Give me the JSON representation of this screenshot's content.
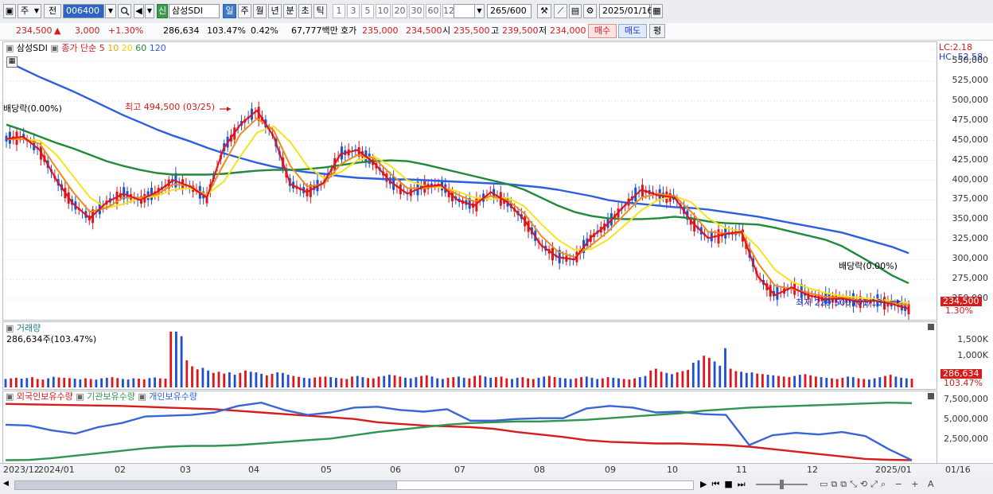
{
  "toolbar": {
    "type_label": "주",
    "prev_label": "전",
    "code_value": "006400",
    "new_badge": "신",
    "stock_name": "삼성SDI",
    "periods": [
      "일",
      "주",
      "월",
      "년",
      "분",
      "초",
      "틱"
    ],
    "active_period": "일",
    "intervals": [
      "1",
      "3",
      "5",
      "10",
      "20",
      "30",
      "60",
      "120"
    ],
    "count": "265",
    "count_total": "/600",
    "date": "2025/01/16"
  },
  "quote": {
    "price": "234,500",
    "arrow": "▲",
    "change": "3,000",
    "change_pct": "+1.30%",
    "volume": "286,634",
    "volume_ratio": "103.47%",
    "turnover": "0.42%",
    "amount": "67,777백만",
    "hoga_label": "호가",
    "hoga_ask": "235,000",
    "hoga_bid": "234,500",
    "open_label": "시",
    "open": "235,500",
    "high_label": "고",
    "high": "239,500",
    "low_label": "저",
    "low": "234,000",
    "buy_button": "매수",
    "sell_button": "매도",
    "eval_button": "평"
  },
  "price_panel": {
    "legend_name": "삼성SDI",
    "legend_ma_title": "종가 단순",
    "legend_ma": [
      "5",
      "10",
      "20",
      "60",
      "120"
    ],
    "lc": "LC:2.18",
    "hc": "HC:-52.58",
    "dividend_left": "배당락(0.00%)",
    "dividend_right": "배당락(0.00%)",
    "high_note": "최고 494,500 (03/25)",
    "low_note": "최저 229,500 (01/13)",
    "last_price_tag": "234,500",
    "last_pct_tag": "1.30%",
    "y_ticks": [
      "550,000",
      "525,000",
      "500,000",
      "475,000",
      "450,000",
      "425,000",
      "400,000",
      "375,000",
      "350,000",
      "325,000",
      "300,000",
      "275,000",
      "250,000"
    ]
  },
  "volume_panel": {
    "title": "거래량",
    "value": "286,634주(103.47%)",
    "y_ticks": [
      "1,500K",
      "1,000K"
    ],
    "last_tag": "286,634",
    "last_pct": "103.47%"
  },
  "holding_panel": {
    "legend": [
      "외국인보유수량",
      "기관보유수량",
      "개인보유수량"
    ],
    "y_ticks": [
      "7,500,000",
      "5,000,000",
      "2,500,000"
    ]
  },
  "x_axis": {
    "labels": [
      "2023/12",
      "2024/01",
      "02",
      "03",
      "04",
      "05",
      "06",
      "07",
      "08",
      "09",
      "10",
      "11",
      "12",
      "2025/01",
      "01/16"
    ]
  },
  "colors": {
    "up": "#e0141a",
    "down": "#1f4fd1",
    "ma5": "#e3121b",
    "ma10": "#f08a1b",
    "ma20": "#f5e31c",
    "ma60": "#1f8a3a",
    "ma120": "#2d5ee0",
    "foreign": "#3a64d8",
    "institution": "#2e9552",
    "individual": "#d81c1c"
  },
  "chart_data": [
    {
      "type": "line",
      "title": "삼성SDI",
      "series": [
        {
          "name": "5",
          "values": [
            452000,
            455000,
            438000,
            400000,
            370000,
            352000,
            372000,
            383000,
            375000,
            385000,
            400000,
            392000,
            378000,
            440000,
            470000,
            488000,
            455000,
            395000,
            385000,
            397000,
            433000,
            438000,
            422000,
            398000,
            383000,
            392000,
            394000,
            375000,
            368000,
            385000,
            372000,
            350000,
            318000,
            303000,
            300000,
            328000,
            345000,
            368000,
            388000,
            381000,
            378000,
            348000,
            327000,
            332000,
            335000,
            278000,
            255000,
            265000,
            255000,
            250000,
            251000,
            247000,
            248000,
            244000,
            238000
          ]
        },
        {
          "name": "10",
          "values": [
            452000,
            452000,
            446000,
            415000,
            385000,
            360000,
            365000,
            378000,
            378000,
            382000,
            395000,
            393000,
            380000,
            420000,
            458000,
            478000,
            463000,
            418000,
            392000,
            395000,
            420000,
            432000,
            428000,
            408000,
            390000,
            390000,
            393000,
            382000,
            373000,
            380000,
            375000,
            358000,
            330000,
            310000,
            303000,
            318000,
            335000,
            357000,
            378000,
            383000,
            380000,
            360000,
            335000,
            333000,
            333000,
            295000,
            267000,
            263000,
            258000,
            253000,
            252000,
            249000,
            248000,
            246000,
            242000
          ]
        },
        {
          "name": "20",
          "values": [
            452000,
            452000,
            450000,
            432000,
            405000,
            378000,
            365000,
            370000,
            377000,
            380000,
            388000,
            390000,
            382000,
            398000,
            430000,
            460000,
            468000,
            448000,
            418000,
            403000,
            410000,
            425000,
            430000,
            418000,
            400000,
            393000,
            391000,
            386000,
            378000,
            376000,
            378000,
            367000,
            345000,
            325000,
            312000,
            313000,
            325000,
            343000,
            362000,
            375000,
            380000,
            372000,
            352000,
            340000,
            335000,
            315000,
            287000,
            272000,
            264000,
            258000,
            254000,
            252000,
            250000,
            248000,
            245000
          ]
        },
        {
          "name": "60",
          "values": [
            470000,
            463000,
            455000,
            447000,
            440000,
            432000,
            424000,
            418000,
            413000,
            409000,
            407000,
            407000,
            407000,
            408000,
            410000,
            412000,
            413000,
            413000,
            414000,
            416000,
            419000,
            422000,
            424000,
            425000,
            424000,
            420000,
            415000,
            410000,
            405000,
            400000,
            395000,
            388000,
            378000,
            368000,
            360000,
            355000,
            352000,
            351000,
            351000,
            352000,
            354000,
            352000,
            348000,
            346000,
            345000,
            344000,
            340000,
            335000,
            330000,
            325000,
            317000,
            305000,
            293000,
            280000,
            270000
          ]
        },
        {
          "name": "120",
          "values": [
            550000,
            540000,
            530000,
            521000,
            512000,
            502000,
            492000,
            482000,
            473000,
            464000,
            456000,
            449000,
            441000,
            434000,
            428000,
            422000,
            417000,
            413000,
            410000,
            408000,
            405000,
            403000,
            402000,
            401000,
            401000,
            400000,
            399000,
            398000,
            397000,
            396000,
            395000,
            393000,
            391000,
            388000,
            384000,
            380000,
            375000,
            372000,
            370000,
            368000,
            366000,
            365000,
            363000,
            360000,
            357000,
            354000,
            350000,
            346000,
            342000,
            338000,
            334000,
            328000,
            322000,
            316000,
            308000
          ]
        }
      ],
      "ylim": [
        230000,
        560000
      ]
    },
    {
      "type": "bar",
      "title": "거래량",
      "values": [
        280,
        300,
        320,
        290,
        310,
        340,
        280,
        260,
        300,
        350,
        330,
        320,
        310,
        290,
        270,
        300,
        280,
        260,
        300,
        320,
        340,
        310,
        280,
        260,
        300,
        290,
        270,
        310,
        330,
        300,
        290,
        1850,
        1850,
        1700,
        900,
        700,
        600,
        650,
        560,
        480,
        520,
        460,
        500,
        420,
        480,
        560,
        520,
        500,
        450,
        400,
        450,
        500,
        480,
        420,
        380,
        350,
        320,
        300,
        330,
        350,
        360,
        340,
        320,
        300,
        280,
        360,
        380,
        340,
        310,
        300,
        360,
        380,
        420,
        400,
        360,
        320,
        300,
        340,
        380,
        400,
        360,
        300,
        280,
        320,
        340,
        360,
        320,
        300,
        380,
        400,
        360,
        320,
        340,
        360,
        300,
        280,
        320,
        340,
        300,
        280,
        320,
        360,
        380,
        340,
        320,
        300,
        280,
        300,
        340,
        360,
        320,
        280,
        300,
        340,
        320,
        300,
        280,
        260,
        300,
        340,
        380,
        560,
        620,
        520,
        480,
        440,
        500,
        540,
        580,
        820,
        900,
        1050,
        980,
        860,
        720,
        1300,
        620,
        540,
        520,
        480,
        500,
        460,
        440,
        420,
        400,
        380,
        360,
        340,
        380,
        420,
        440,
        400,
        360,
        340,
        320,
        300,
        280,
        320,
        360,
        340,
        300,
        280,
        260,
        300,
        340,
        380,
        420,
        360,
        320,
        300,
        287
      ],
      "ylim": [
        0,
        1900000
      ]
    },
    {
      "type": "line",
      "title": "보유수량",
      "series": [
        {
          "name": "외국인보유수량",
          "values": [
            7050000,
            7000000,
            6950000,
            6900000,
            6850000,
            6800000,
            6700000,
            6600000,
            6500000,
            6400000,
            6200000,
            6000000,
            5800000,
            5600000,
            5400000,
            5200000,
            4800000,
            4600000,
            4400000,
            4300000,
            4200000,
            4000000,
            3600000,
            3300000,
            3000000,
            2600000,
            2400000,
            2300000,
            2200000,
            2200000,
            2100000,
            2000000,
            1800000,
            1500000,
            1200000,
            900000,
            600000,
            300000,
            200000,
            150000
          ]
        },
        {
          "name": "기관보유수량",
          "values": [
            4500000,
            4400000,
            3800000,
            3400000,
            4200000,
            4700000,
            5500000,
            5600000,
            5700000,
            6000000,
            6800000,
            7200000,
            6300000,
            5700000,
            6000000,
            6600000,
            6700000,
            6300000,
            6100000,
            6400000,
            5000000,
            5000000,
            5200000,
            5300000,
            5300000,
            6500000,
            6800000,
            6600000,
            6000000,
            6100000,
            5800000,
            5700000,
            2000000,
            3200000,
            3500000,
            3300000,
            3600000,
            3100000,
            1500000,
            150000
          ]
        },
        {
          "name": "개인보유수량",
          "values": [
            150000,
            180000,
            400000,
            700000,
            1000000,
            1300000,
            1600000,
            1800000,
            1900000,
            1900000,
            2000000,
            2200000,
            2400000,
            2600000,
            2800000,
            3200000,
            3600000,
            3900000,
            4200000,
            4500000,
            4700000,
            4800000,
            4900000,
            4900000,
            5000000,
            5100000,
            5300000,
            5500000,
            5700000,
            5900000,
            6200000,
            6400000,
            6600000,
            6700000,
            6800000,
            6900000,
            7000000,
            7100000,
            7200000,
            7150000
          ]
        }
      ],
      "ylim": [
        0,
        8000000
      ]
    }
  ]
}
